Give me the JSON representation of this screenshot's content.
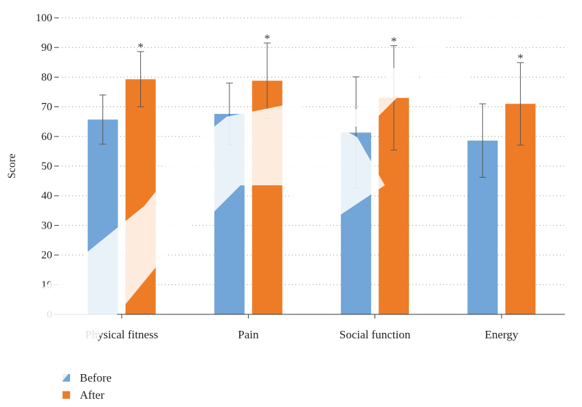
{
  "chart_data": {
    "type": "bar",
    "title": "",
    "xlabel": "",
    "ylabel": "Score",
    "ylim": [
      0,
      100
    ],
    "yticks": [
      0,
      10,
      20,
      30,
      40,
      50,
      60,
      70,
      80,
      90,
      100
    ],
    "grid": true,
    "legend_position": "bottom-left",
    "categories": [
      "Physical fitness",
      "Pain",
      "Social function",
      "Energy"
    ],
    "series": [
      {
        "name": "Before",
        "color": "#72a6d8",
        "values": [
          65.7,
          67.6,
          61.3,
          58.6
        ],
        "error": [
          8.3,
          10.4,
          18.8,
          12.4
        ]
      },
      {
        "name": "After",
        "color": "#ee7c26",
        "values": [
          79.3,
          78.8,
          73.0,
          71.0
        ],
        "error": [
          9.3,
          12.7,
          17.6,
          13.9
        ]
      }
    ],
    "annotations": [
      {
        "category": "Physical fitness",
        "series": "After",
        "text": "*"
      },
      {
        "category": "Pain",
        "series": "After",
        "text": "*"
      },
      {
        "category": "Social function",
        "series": "After",
        "text": "*"
      },
      {
        "category": "Energy",
        "series": "After",
        "text": "*"
      }
    ]
  }
}
